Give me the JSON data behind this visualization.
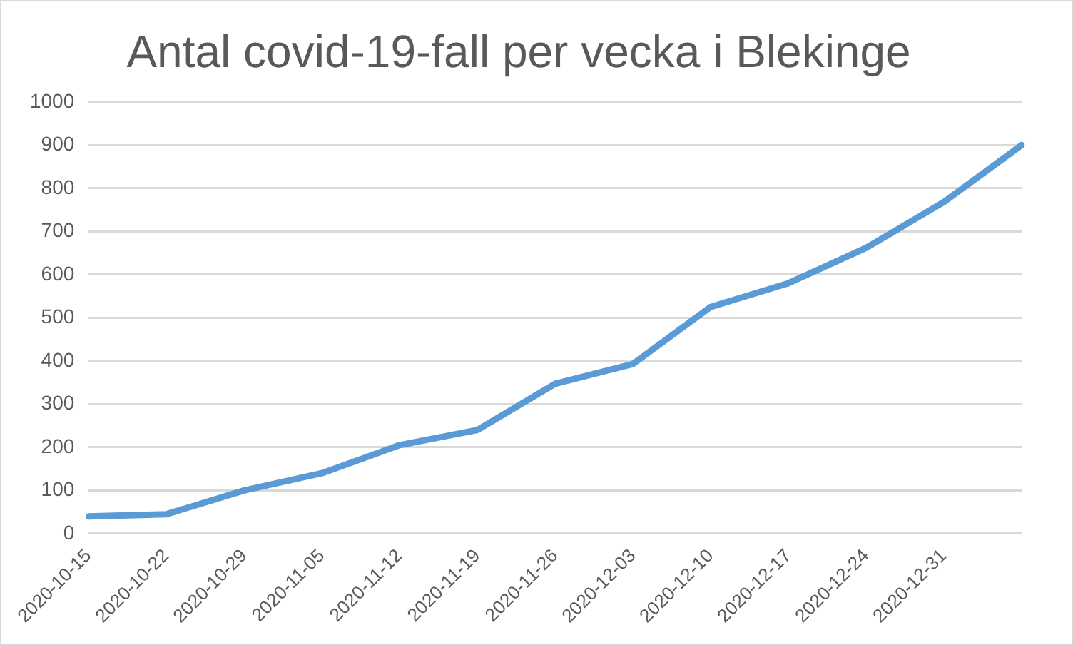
{
  "chart_data": {
    "type": "line",
    "title": "Antal covid-19-fall per vecka i Blekinge",
    "categories": [
      "2020-10-15",
      "2020-10-22",
      "2020-10-29",
      "2020-11-05",
      "2020-11-12",
      "2020-11-19",
      "2020-11-26",
      "2020-12-03",
      "2020-12-10",
      "2020-12-17",
      "2020-12-24",
      "2020-12-31",
      null
    ],
    "series": [
      {
        "color": "#5b9bd5",
        "values": [
          40,
          45,
          100,
          140,
          205,
          240,
          347,
          393,
          525,
          580,
          662,
          768,
          900
        ]
      }
    ],
    "ylim": [
      0,
      1000
    ],
    "yticks": [
      0,
      100,
      200,
      300,
      400,
      500,
      600,
      700,
      800,
      900,
      1000
    ],
    "grid": "y",
    "legend": false,
    "marker": "none",
    "line_style": "solid"
  }
}
